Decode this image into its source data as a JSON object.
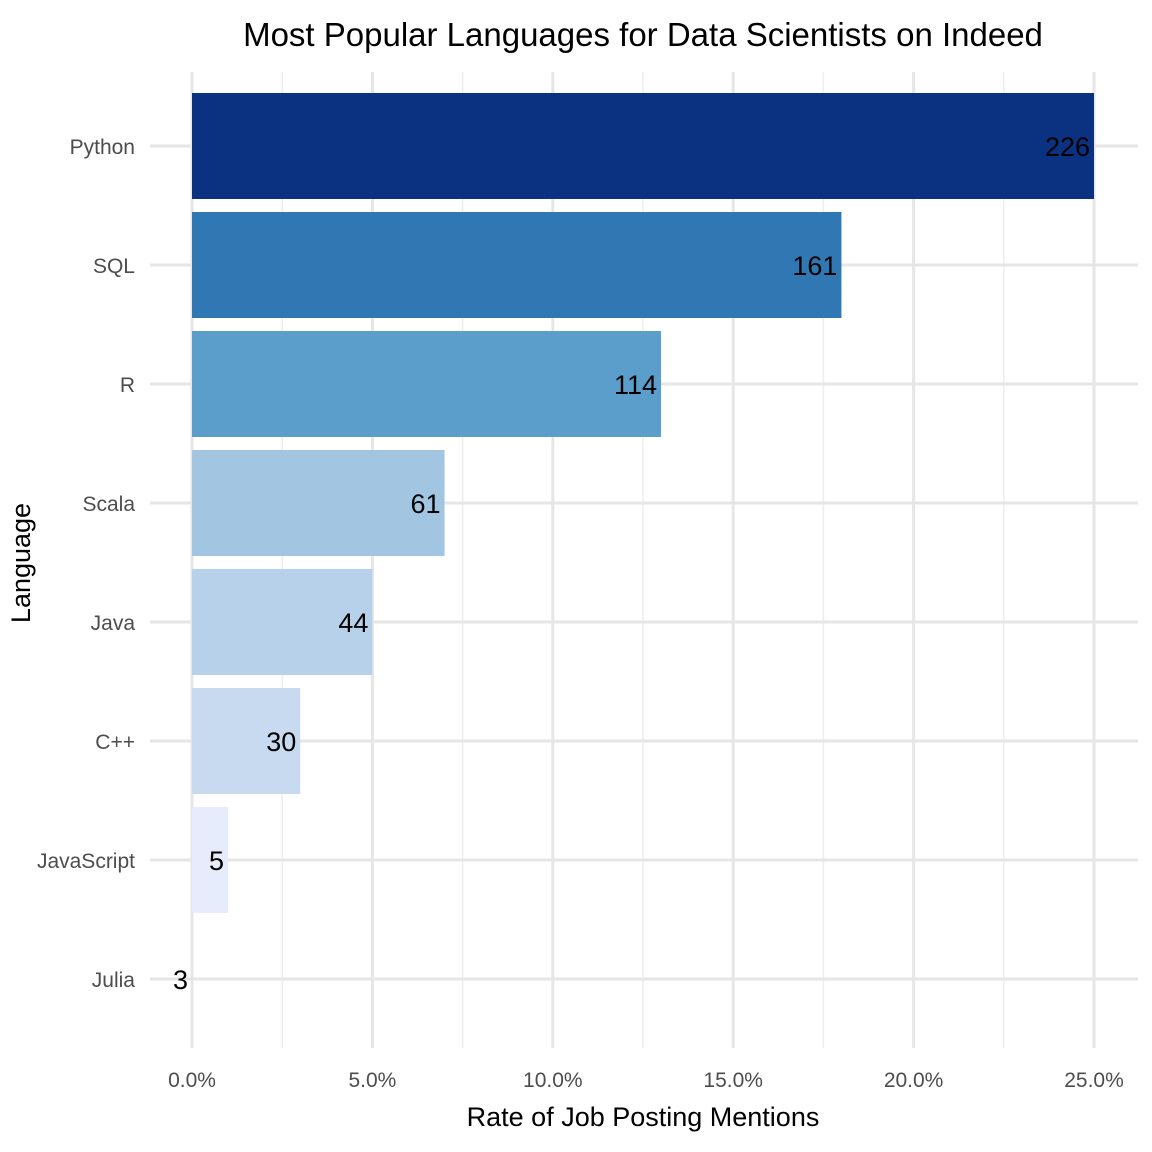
{
  "chart_data": {
    "type": "bar",
    "orientation": "horizontal",
    "title": "Most Popular Languages for Data Scientists on Indeed",
    "xlabel": "Rate of Job Posting Mentions",
    "ylabel": "Language",
    "xlim": [
      0,
      25
    ],
    "xticks": [
      0,
      5,
      10,
      15,
      20,
      25
    ],
    "xtick_labels": [
      "0.0%",
      "5.0%",
      "10.0%",
      "15.0%",
      "20.0%",
      "25.0%"
    ],
    "grid": true,
    "legend": "none",
    "categories": [
      "Python",
      "SQL",
      "R",
      "Scala",
      "Java",
      "C++",
      "JavaScript",
      "Julia"
    ],
    "values": [
      25.0,
      18.0,
      13.0,
      7.0,
      5.0,
      3.0,
      1.0,
      0.0
    ],
    "data_labels": [
      "226",
      "161",
      "114",
      "61",
      "44",
      "30",
      "5",
      "3"
    ],
    "colors": [
      "#0b3281",
      "#3078b4",
      "#5b9dcb",
      "#a2c6e2",
      "#b8d1ea",
      "#c7daf0",
      "#e6ecfb",
      "#f5f8fe"
    ]
  }
}
